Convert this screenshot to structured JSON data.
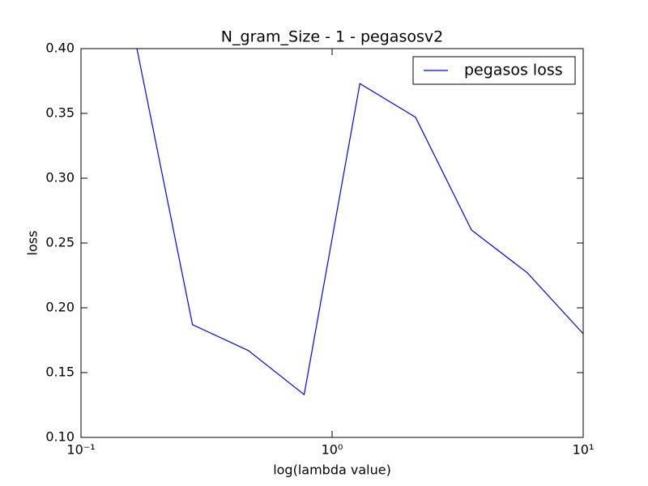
{
  "chart_data": {
    "type": "line",
    "title": "N_gram_Size - 1 - pegasosv2",
    "xlabel": "log(lambda value)",
    "ylabel": "loss",
    "xscale": "log",
    "x": [
      0.167,
      0.278,
      0.464,
      0.774,
      1.29,
      2.15,
      3.59,
      5.99,
      10
    ],
    "series": [
      {
        "name": "pegasos loss",
        "color": "#0000ff",
        "values": [
          0.4,
          0.187,
          0.167,
          0.133,
          0.373,
          0.347,
          0.26,
          0.227,
          0.18
        ]
      }
    ],
    "xlim": [
      0.1,
      10
    ],
    "xticks": [
      {
        "value": 0.1,
        "label": "10⁻¹"
      },
      {
        "value": 1,
        "label": "10⁰"
      },
      {
        "value": 10,
        "label": "10¹"
      }
    ],
    "ylim": [
      0.1,
      0.4
    ],
    "yticks": [
      {
        "value": 0.1,
        "label": "0.10"
      },
      0.15,
      {
        "value": 0.2,
        "label": "0.20"
      },
      0.25,
      {
        "value": 0.3,
        "label": "0.30"
      },
      0.35,
      {
        "value": 0.4,
        "label": "0.40"
      }
    ],
    "legend": "upper right"
  }
}
